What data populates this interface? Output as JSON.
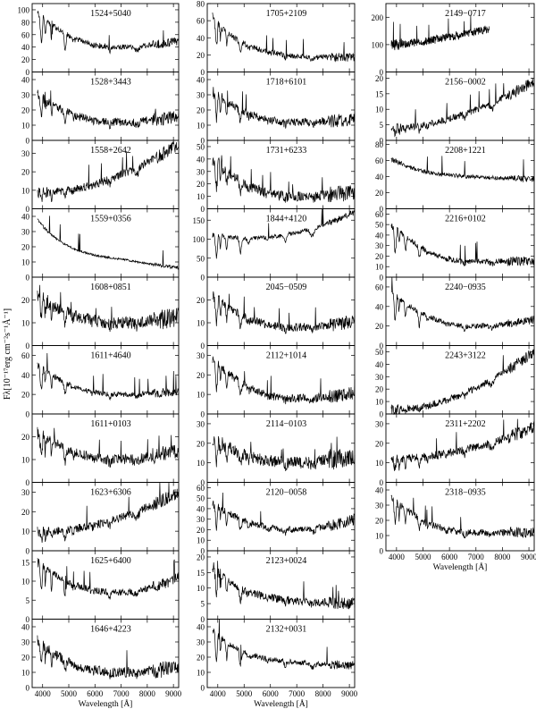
{
  "figure": {
    "ylabel": "Fλ[10⁻¹⁷erg cm⁻²s⁻¹Å⁻¹]",
    "xlabel": "Wavelength [Å]",
    "x_ticks": [
      "4000",
      "5000",
      "6000",
      "7000",
      "8000",
      "9000"
    ]
  },
  "chart_data": [
    {
      "type": "line",
      "title": "1524+5040",
      "xlabel": "",
      "ylabel": "",
      "xlim": [
        3600,
        9200
      ],
      "ylim": [
        0,
        110
      ],
      "yticks": [
        0,
        20,
        40,
        60,
        80,
        100
      ],
      "shape": "mid",
      "level": [
        95,
        40,
        55
      ],
      "x_range": [
        3800,
        9200
      ],
      "noise": 0.08,
      "absorption": true
    },
    {
      "type": "line",
      "title": "1528+3443",
      "xlabel": "",
      "ylabel": "",
      "xlim": [
        3600,
        9200
      ],
      "ylim": [
        0,
        45
      ],
      "yticks": [
        0,
        10,
        20,
        30,
        40
      ],
      "shape": "mid",
      "level": [
        30,
        12,
        18
      ],
      "x_range": [
        3800,
        9200
      ],
      "noise": 0.12,
      "absorption": true
    },
    {
      "type": "line",
      "title": "1558+2642",
      "xlabel": "",
      "ylabel": "",
      "xlim": [
        3600,
        9200
      ],
      "ylim": [
        0,
        37
      ],
      "yticks": [
        0,
        10,
        20,
        30
      ],
      "shape": "red",
      "level": [
        9,
        12,
        35
      ],
      "x_range": [
        3800,
        9200
      ],
      "noise": 0.12,
      "absorption": true
    },
    {
      "type": "line",
      "title": "1559+0356",
      "xlabel": "",
      "ylabel": "",
      "xlim": [
        3600,
        9200
      ],
      "ylim": [
        0,
        45
      ],
      "yticks": [
        0,
        10,
        20,
        30,
        40
      ],
      "shape": "blue",
      "level": [
        38,
        10,
        3
      ],
      "x_range": [
        3800,
        9200
      ],
      "noise": 0.03,
      "absorption": false
    },
    {
      "type": "line",
      "title": "1608+0851",
      "xlabel": "",
      "ylabel": "",
      "xlim": [
        3600,
        9200
      ],
      "ylim": [
        0,
        30
      ],
      "yticks": [
        0,
        10,
        20
      ],
      "shape": "mid",
      "level": [
        22,
        10,
        14
      ],
      "x_range": [
        3800,
        9200
      ],
      "noise": 0.18,
      "absorption": true
    },
    {
      "type": "line",
      "title": "1611+4640",
      "xlabel": "",
      "ylabel": "",
      "xlim": [
        3600,
        9200
      ],
      "ylim": [
        0,
        70
      ],
      "yticks": [
        0,
        20,
        40,
        60
      ],
      "shape": "mid",
      "level": [
        50,
        20,
        25
      ],
      "x_range": [
        3800,
        9200
      ],
      "noise": 0.08,
      "absorption": true
    },
    {
      "type": "line",
      "title": "1611+0103",
      "xlabel": "",
      "ylabel": "",
      "xlim": [
        3600,
        9200
      ],
      "ylim": [
        0,
        30
      ],
      "yticks": [
        0,
        10,
        20
      ],
      "shape": "mid",
      "level": [
        22,
        10,
        16
      ],
      "x_range": [
        3800,
        9200
      ],
      "noise": 0.15,
      "absorption": true
    },
    {
      "type": "line",
      "title": "1623+6306",
      "xlabel": "",
      "ylabel": "",
      "xlim": [
        3600,
        9200
      ],
      "ylim": [
        0,
        35
      ],
      "yticks": [
        0,
        10,
        20,
        30
      ],
      "shape": "red",
      "level": [
        10,
        12,
        30
      ],
      "x_range": [
        3800,
        9200
      ],
      "noise": 0.12,
      "absorption": true
    },
    {
      "type": "line",
      "title": "1625+6400",
      "xlabel": "",
      "ylabel": "",
      "xlim": [
        3600,
        9200
      ],
      "ylim": [
        0,
        18
      ],
      "yticks": [
        0,
        5,
        10,
        15
      ],
      "shape": "mid",
      "level": [
        15,
        7,
        13
      ],
      "x_range": [
        3800,
        9200
      ],
      "noise": 0.1,
      "absorption": true
    },
    {
      "type": "line",
      "title": "1646+4223",
      "xlabel": "Wavelength [Å]",
      "ylabel": "",
      "xlim": [
        3600,
        9200
      ],
      "ylim": [
        0,
        45
      ],
      "yticks": [
        0,
        10,
        20,
        30,
        40
      ],
      "shape": "mid",
      "level": [
        30,
        10,
        15
      ],
      "x_range": [
        3800,
        9200
      ],
      "noise": 0.15,
      "absorption": true
    },
    {
      "type": "line",
      "title": "1705+2109",
      "xlabel": "",
      "ylabel": "",
      "xlim": [
        3600,
        9200
      ],
      "ylim": [
        0,
        80
      ],
      "yticks": [
        0,
        20,
        40,
        60,
        80
      ],
      "shape": "blue",
      "level": [
        65,
        15,
        18
      ],
      "x_range": [
        3800,
        9200
      ],
      "noise": 0.08,
      "absorption": true
    },
    {
      "type": "line",
      "title": "1718+6101",
      "xlabel": "",
      "ylabel": "",
      "xlim": [
        3600,
        9200
      ],
      "ylim": [
        0,
        45
      ],
      "yticks": [
        0,
        10,
        20,
        30,
        40
      ],
      "shape": "mid",
      "level": [
        32,
        12,
        15
      ],
      "x_range": [
        3800,
        9200
      ],
      "noise": 0.12,
      "absorption": true
    },
    {
      "type": "line",
      "title": "1731+6233",
      "xlabel": "",
      "ylabel": "",
      "xlim": [
        3600,
        9200
      ],
      "ylim": [
        0,
        55
      ],
      "yticks": [
        0,
        10,
        20,
        30,
        40,
        50
      ],
      "shape": "mid",
      "level": [
        40,
        10,
        15
      ],
      "x_range": [
        3800,
        9200
      ],
      "noise": 0.15,
      "absorption": true
    },
    {
      "type": "line",
      "title": "1844+4120",
      "xlabel": "",
      "ylabel": "",
      "xlim": [
        3600,
        9200
      ],
      "ylim": [
        0,
        180
      ],
      "yticks": [
        0,
        50,
        100,
        150
      ],
      "shape": "red",
      "level": [
        110,
        80,
        170
      ],
      "x_range": [
        3800,
        9200
      ],
      "noise": 0.06,
      "absorption": true
    },
    {
      "type": "line",
      "title": "2045−0509",
      "xlabel": "",
      "ylabel": "",
      "xlim": [
        3600,
        9200
      ],
      "ylim": [
        0,
        30
      ],
      "yticks": [
        0,
        10,
        20
      ],
      "shape": "mid",
      "level": [
        22,
        8,
        12
      ],
      "x_range": [
        3800,
        9200
      ],
      "noise": 0.12,
      "absorption": true
    },
    {
      "type": "line",
      "title": "2112+1014",
      "xlabel": "",
      "ylabel": "",
      "xlim": [
        3600,
        9200
      ],
      "ylim": [
        0,
        35
      ],
      "yticks": [
        0,
        10,
        20,
        30
      ],
      "shape": "mid",
      "level": [
        28,
        8,
        12
      ],
      "x_range": [
        3800,
        9200
      ],
      "noise": 0.12,
      "absorption": true
    },
    {
      "type": "line",
      "title": "2114−0103",
      "xlabel": "",
      "ylabel": "",
      "xlim": [
        3600,
        9200
      ],
      "ylim": [
        0,
        35
      ],
      "yticks": [
        0,
        10,
        20,
        30
      ],
      "shape": "mid",
      "level": [
        22,
        10,
        15
      ],
      "x_range": [
        3800,
        9200
      ],
      "noise": 0.18,
      "absorption": true
    },
    {
      "type": "line",
      "title": "2120−0058",
      "xlabel": "",
      "ylabel": "",
      "xlim": [
        3600,
        9200
      ],
      "ylim": [
        0,
        65
      ],
      "yticks": [
        0,
        10,
        20,
        30,
        40,
        50,
        60
      ],
      "shape": "mid",
      "level": [
        45,
        20,
        35
      ],
      "x_range": [
        3800,
        9200
      ],
      "noise": 0.1,
      "absorption": true
    },
    {
      "type": "line",
      "title": "2123+0024",
      "xlabel": "",
      "ylabel": "",
      "xlim": [
        3600,
        9200
      ],
      "ylim": [
        0,
        22
      ],
      "yticks": [
        0,
        5,
        10,
        15,
        20
      ],
      "shape": "blue",
      "level": [
        17,
        5,
        5
      ],
      "x_range": [
        3800,
        9200
      ],
      "noise": 0.12,
      "absorption": true
    },
    {
      "type": "line",
      "title": "2132+0031",
      "xlabel": "Wavelength [Å]",
      "ylabel": "",
      "xlim": [
        3600,
        9200
      ],
      "ylim": [
        0,
        45
      ],
      "yticks": [
        0,
        10,
        20,
        30,
        40
      ],
      "shape": "blue",
      "level": [
        38,
        15,
        14
      ],
      "x_range": [
        3800,
        9200
      ],
      "noise": 0.08,
      "absorption": true
    },
    {
      "type": "line",
      "title": "2149−0717",
      "xlabel": "",
      "ylabel": "",
      "xlim": [
        3600,
        9200
      ],
      "ylim": [
        0,
        250
      ],
      "yticks": [
        0,
        100,
        200
      ],
      "shape": "flatup",
      "level": [
        100,
        140,
        200
      ],
      "x_range": [
        3800,
        7500
      ],
      "noise": 0.12,
      "absorption": false
    },
    {
      "type": "line",
      "title": "2156−0002",
      "xlabel": "",
      "ylabel": "",
      "xlim": [
        3600,
        9200
      ],
      "ylim": [
        0,
        22
      ],
      "yticks": [
        0,
        5,
        10,
        15,
        20
      ],
      "shape": "red",
      "level": [
        4,
        7,
        19
      ],
      "x_range": [
        3800,
        9200
      ],
      "noise": 0.1,
      "absorption": true
    },
    {
      "type": "line",
      "title": "2208+1221",
      "xlabel": "",
      "ylabel": "",
      "xlim": [
        3600,
        9200
      ],
      "ylim": [
        0,
        85
      ],
      "yticks": [
        0,
        20,
        40,
        60,
        80
      ],
      "shape": "blue",
      "level": [
        62,
        38,
        35
      ],
      "x_range": [
        3800,
        9200
      ],
      "noise": 0.06,
      "absorption": false
    },
    {
      "type": "line",
      "title": "2216+0102",
      "xlabel": "",
      "ylabel": "",
      "xlim": [
        3600,
        9200
      ],
      "ylim": [
        0,
        65
      ],
      "yticks": [
        0,
        10,
        20,
        30,
        40,
        50,
        60
      ],
      "shape": "mid",
      "level": [
        50,
        15,
        15
      ],
      "x_range": [
        3800,
        9200
      ],
      "noise": 0.08,
      "absorption": true
    },
    {
      "type": "line",
      "title": "2240−0935",
      "xlabel": "",
      "ylabel": "",
      "xlim": [
        3600,
        9200
      ],
      "ylim": [
        0,
        70
      ],
      "yticks": [
        0,
        20,
        40,
        60
      ],
      "shape": "mid",
      "level": [
        55,
        20,
        30
      ],
      "x_range": [
        3800,
        9200
      ],
      "noise": 0.08,
      "absorption": true
    },
    {
      "type": "line",
      "title": "2243+3122",
      "xlabel": "",
      "ylabel": "",
      "xlim": [
        3600,
        9200
      ],
      "ylim": [
        0,
        55
      ],
      "yticks": [
        0,
        10,
        20,
        30,
        40,
        50
      ],
      "shape": "red",
      "level": [
        4,
        10,
        50
      ],
      "x_range": [
        3800,
        9200
      ],
      "noise": 0.1,
      "absorption": true
    },
    {
      "type": "line",
      "title": "2311+2202",
      "xlabel": "",
      "ylabel": "",
      "xlim": [
        3600,
        9200
      ],
      "ylim": [
        0,
        35
      ],
      "yticks": [
        0,
        10,
        20,
        30
      ],
      "shape": "red",
      "level": [
        12,
        15,
        28
      ],
      "x_range": [
        3800,
        9200
      ],
      "noise": 0.12,
      "absorption": true
    },
    {
      "type": "line",
      "title": "2318−0935",
      "xlabel": "Wavelength [Å]",
      "ylabel": "",
      "xlim": [
        3600,
        9200
      ],
      "ylim": [
        0,
        45
      ],
      "yticks": [
        0,
        10,
        20,
        30,
        40
      ],
      "shape": "mid",
      "level": [
        35,
        12,
        12
      ],
      "x_range": [
        3800,
        9200
      ],
      "noise": 0.1,
      "absorption": true
    }
  ]
}
